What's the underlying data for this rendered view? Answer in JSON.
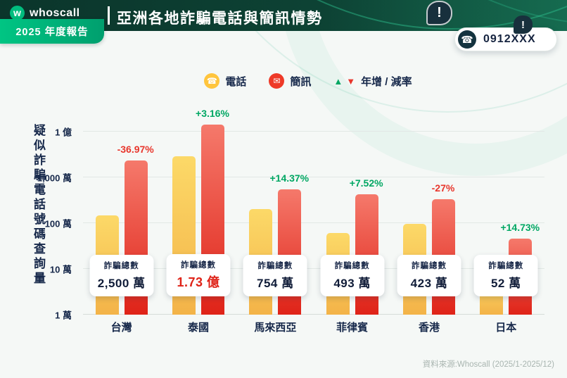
{
  "icons": {
    "logo_letter": "w",
    "phone": "☎",
    "sms": "✉",
    "trend_up": "▲",
    "trend_down": "▼",
    "alert": "!"
  },
  "header": {
    "brand_name": "whoscall",
    "report_badge": "2025 年度報告",
    "title": "亞洲各地詐騙電話與簡訊情勢",
    "caller_id": "0912XXX"
  },
  "legend": {
    "phone_label": "電話",
    "sms_label": "簡訊",
    "yoy_label": "年增 / 減率"
  },
  "colors": {
    "header_bg": "#0c3a2f",
    "brand_green": "#00bd7e",
    "phone_bar_top": "#fcd968",
    "phone_bar_bottom": "#f3b348",
    "sms_bar_top": "#f5796b",
    "sms_bar_bottom": "#df2318",
    "trend_up": "#00a763",
    "trend_down": "#e8362c",
    "text_dark": "#16284a"
  },
  "chart_data": {
    "type": "bar",
    "scale": "log",
    "title": "亞洲各地詐騙電話與簡訊情勢",
    "ylabel": "疑似詐騙電話號碼查詢量",
    "ylim": [
      10000,
      100000000
    ],
    "grid": true,
    "legend_position": "top",
    "yticks": [
      {
        "label": "1 億",
        "value": 100000000
      },
      {
        "label": "1,000 萬",
        "value": 10000000
      },
      {
        "label": "100 萬",
        "value": 1000000
      },
      {
        "label": "10 萬",
        "value": 100000
      },
      {
        "label": "1 萬",
        "value": 10000
      }
    ],
    "categories": [
      "台灣",
      "泰國",
      "馬來西亞",
      "菲律賓",
      "香港",
      "日本"
    ],
    "series": [
      {
        "name": "電話",
        "values": [
          1500000,
          29000000,
          2000000,
          600000,
          950000,
          65000
        ]
      },
      {
        "name": "簡訊",
        "values": [
          23500000,
          144000000,
          5540000,
          4330000,
          3280000,
          455000
        ]
      }
    ],
    "yoy": [
      {
        "value": "-36.97%",
        "trend": "down"
      },
      {
        "value": "+3.16%",
        "trend": "up"
      },
      {
        "value": "+14.37%",
        "trend": "up"
      },
      {
        "value": "+7.52%",
        "trend": "up"
      },
      {
        "value": "-27%",
        "trend": "down"
      },
      {
        "value": "+14.73%",
        "trend": "up"
      }
    ],
    "totals": {
      "label": "詐騙總數",
      "values": [
        "2,500 萬",
        "1.73 億",
        "754 萬",
        "493 萬",
        "423 萬",
        "52 萬"
      ],
      "emphasized_index": 1
    }
  },
  "footer": {
    "source": "資料來源:Whoscall (2025/1-2025/12)"
  }
}
